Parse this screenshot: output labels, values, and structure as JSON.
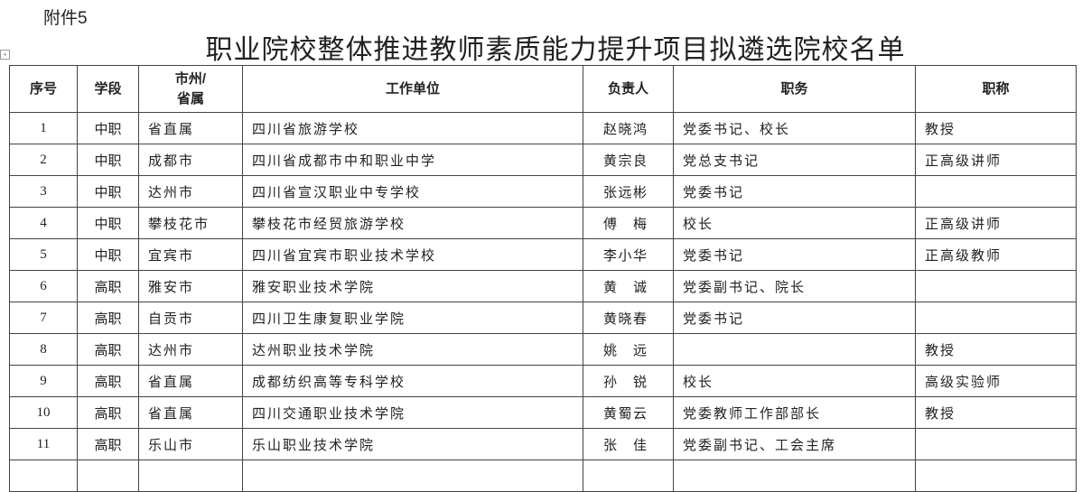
{
  "attachment_label": "附件5",
  "title": "职业院校整体推进教师素质能力提升项目拟遴选院校名单",
  "table": {
    "headers": [
      "序号",
      "学段",
      "市州/\n省属",
      "工作单位",
      "负责人",
      "职务",
      "职称"
    ],
    "rows": [
      [
        "1",
        "中职",
        "省直属",
        "四川省旅游学校",
        "赵晓鸿",
        "党委书记、校长",
        "教授"
      ],
      [
        "2",
        "中职",
        "成都市",
        "四川省成都市中和职业中学",
        "黄宗良",
        "党总支书记",
        "正高级讲师"
      ],
      [
        "3",
        "中职",
        "达州市",
        "四川省宣汉职业中专学校",
        "张远彬",
        "党委书记",
        ""
      ],
      [
        "4",
        "中职",
        "攀枝花市",
        "攀枝花市经贸旅游学校",
        "傅梅",
        "校长",
        "正高级讲师"
      ],
      [
        "5",
        "中职",
        "宜宾市",
        "四川省宜宾市职业技术学校",
        "李小华",
        "党委书记",
        "正高级教师"
      ],
      [
        "6",
        "高职",
        "雅安市",
        "雅安职业技术学院",
        "黄诚",
        "党委副书记、院长",
        ""
      ],
      [
        "7",
        "高职",
        "自贡市",
        "四川卫生康复职业学院",
        "黄晓春",
        "党委书记",
        ""
      ],
      [
        "8",
        "高职",
        "达州市",
        "达州职业技术学院",
        "姚远",
        "",
        "教授"
      ],
      [
        "9",
        "高职",
        "省直属",
        "成都纺织高等专科学校",
        "孙锐",
        "校长",
        "高级实验师"
      ],
      [
        "10",
        "高职",
        "省直属",
        "四川交通职业技术学院",
        "黄蜀云",
        "党委教师工作部部长",
        "教授"
      ],
      [
        "11",
        "高职",
        "乐山市",
        "乐山职业技术学院",
        "张佳",
        "党委副书记、工会主席",
        ""
      ]
    ]
  }
}
